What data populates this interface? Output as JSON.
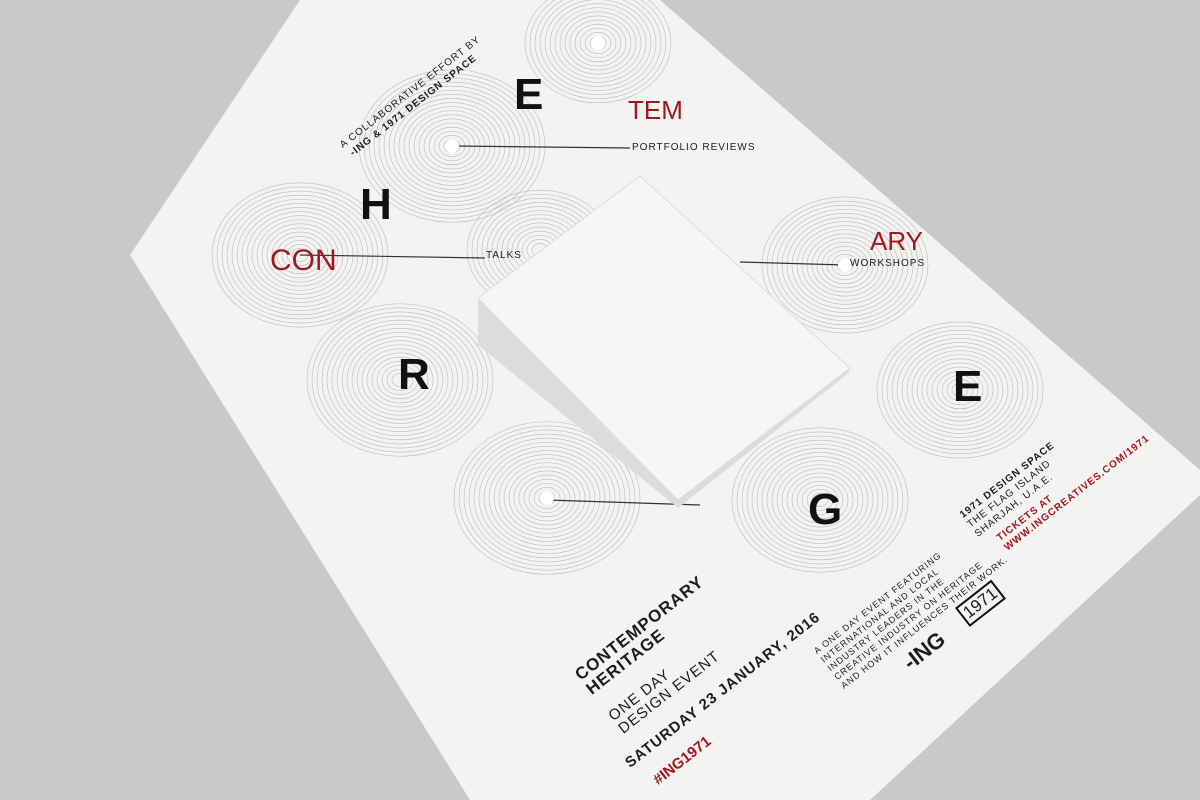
{
  "poster": {
    "credit_line1": "A COLLABORATIVE EFFORT BY",
    "credit_line2": "-ING & 1971 DESIGN SPACE",
    "letters": {
      "e_top": "E",
      "tem": "TEM",
      "con": "CON",
      "h": "H",
      "ary": "ARY",
      "r": "R",
      "e_right": "E",
      "g": "G"
    },
    "labels": {
      "portfolio": "PORTFOLIO REVIEWS",
      "talks": "TALKS",
      "workshops": "WORKSHOPS"
    },
    "title_line1": "CONTEMPORARY",
    "title_line2": "HERITAGE",
    "subtitle_line1": "ONE DAY",
    "subtitle_line2": "DESIGN EVENT",
    "date": "SATURDAY 23 JANUARY, 2016",
    "hashtag": "#ING1971",
    "description": [
      "A ONE DAY EVENT FEATURING",
      "INTERNATIONAL AND LOCAL",
      "INDUSTRY LEADERS IN THE",
      "CREATIVE INDUSTRY ON HERITAGE",
      "AND HOW IT INFLUENCES THEIR WORK."
    ],
    "venue": [
      "1971 DESIGN SPACE",
      "THE FLAG ISLAND",
      "SHARJAH, U.A.E."
    ],
    "tickets_line1": "TICKETS AT",
    "tickets_line2": "WWW.INGCREATIVES.COM/1971",
    "logo_ing": "-ING",
    "logo_1971": "1971"
  },
  "colors": {
    "accent": "#a3161c",
    "background": "#c8c9cb",
    "paper": "#f4f4f3"
  }
}
